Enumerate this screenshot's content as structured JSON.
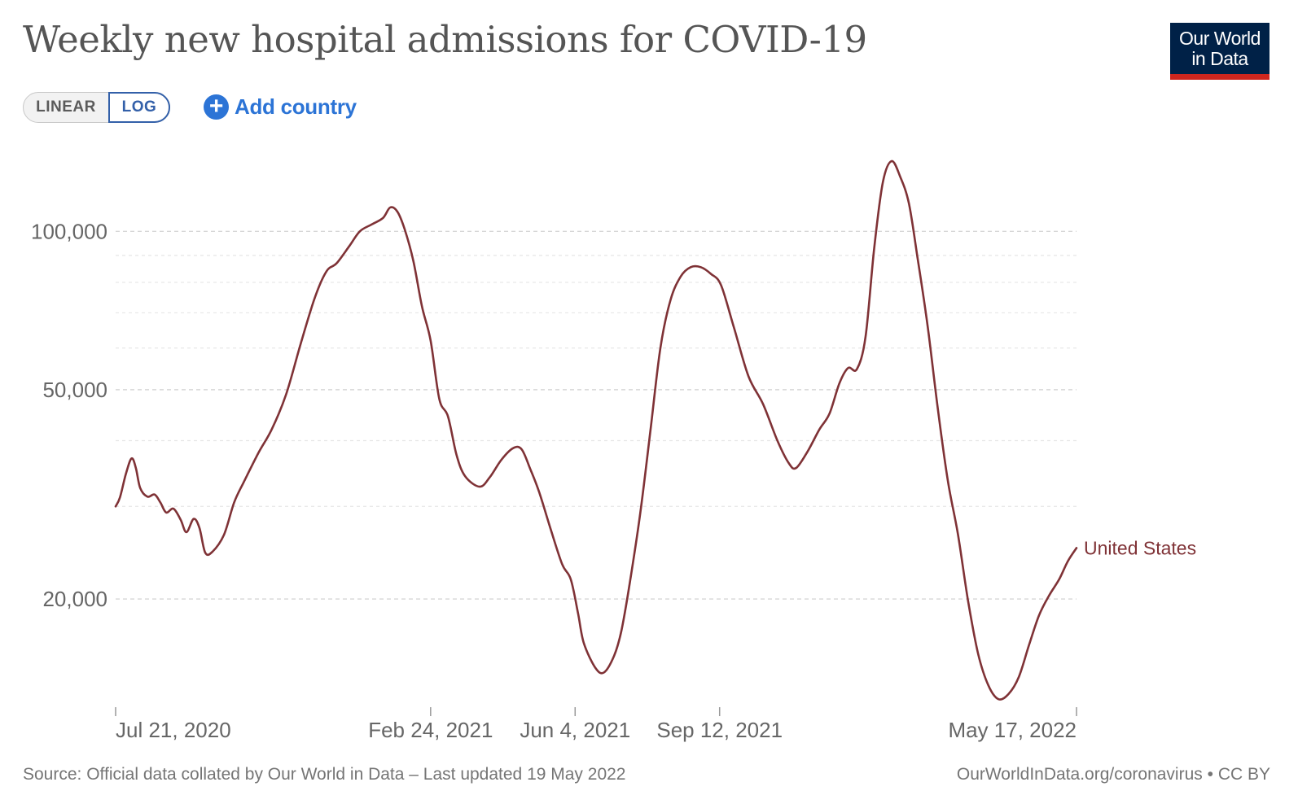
{
  "header": {
    "title": "Weekly new hospital admissions for COVID-19",
    "logo_line1": "Our World",
    "logo_line2": "in Data"
  },
  "controls": {
    "linear_label": "LINEAR",
    "log_label": "LOG",
    "selected_scale": "LOG",
    "add_country_label": "Add country",
    "add_country_icon": "plus-circle-icon"
  },
  "footer": {
    "source_text": "Source: Official data collated by Our World in Data – Last updated 19 May 2022",
    "site_link": "OurWorldInData.org/coronavirus",
    "separator": "•",
    "license": "CC BY"
  },
  "colors": {
    "series": "#7f3236",
    "accent": "#2c74d6",
    "logo_bg": "#002147",
    "logo_accent": "#ce261e"
  },
  "chart_data": {
    "type": "line",
    "title": "Weekly new hospital admissions for COVID-19",
    "y_scale": "log",
    "ylim": [
      12500,
      145000
    ],
    "y_ticks": [
      {
        "value": 20000,
        "label": "20,000"
      },
      {
        "value": 50000,
        "label": "50,000"
      },
      {
        "value": 100000,
        "label": "100,000"
      }
    ],
    "y_minor_gridlines": [
      30000,
      40000,
      60000,
      70000,
      80000,
      90000
    ],
    "x_ticks": [
      {
        "date": "2020-07-21",
        "label": "Jul 21, 2020"
      },
      {
        "date": "2021-02-24",
        "label": "Feb 24, 2021"
      },
      {
        "date": "2021-06-04",
        "label": "Jun 4, 2021"
      },
      {
        "date": "2021-09-12",
        "label": "Sep 12, 2021"
      },
      {
        "date": "2022-05-17",
        "label": "May 17, 2022"
      }
    ],
    "grid": "horizontal dashed",
    "legend": "line-end label",
    "series": [
      {
        "name": "United States",
        "points": [
          [
            "2020-07-21",
            30000
          ],
          [
            "2020-07-24",
            31200
          ],
          [
            "2020-07-28",
            34500
          ],
          [
            "2020-08-01",
            37000
          ],
          [
            "2020-08-04",
            35500
          ],
          [
            "2020-08-07",
            32500
          ],
          [
            "2020-08-12",
            31300
          ],
          [
            "2020-08-17",
            31600
          ],
          [
            "2020-08-21",
            30500
          ],
          [
            "2020-08-25",
            29200
          ],
          [
            "2020-08-30",
            29700
          ],
          [
            "2020-09-04",
            28300
          ],
          [
            "2020-09-08",
            26800
          ],
          [
            "2020-09-13",
            28400
          ],
          [
            "2020-09-17",
            27300
          ],
          [
            "2020-09-21",
            24500
          ],
          [
            "2020-09-26",
            24600
          ],
          [
            "2020-10-04",
            26500
          ],
          [
            "2020-10-11",
            30500
          ],
          [
            "2020-10-18",
            33500
          ],
          [
            "2020-10-28",
            38000
          ],
          [
            "2020-11-06",
            42000
          ],
          [
            "2020-11-16",
            49000
          ],
          [
            "2020-11-26",
            61000
          ],
          [
            "2020-12-06",
            75000
          ],
          [
            "2020-12-14",
            84000
          ],
          [
            "2020-12-21",
            87000
          ],
          [
            "2020-12-30",
            94000
          ],
          [
            "2021-01-06",
            100000
          ],
          [
            "2021-01-14",
            103000
          ],
          [
            "2021-01-22",
            106000
          ],
          [
            "2021-01-27",
            111000
          ],
          [
            "2021-02-01",
            109000
          ],
          [
            "2021-02-06",
            101000
          ],
          [
            "2021-02-12",
            88000
          ],
          [
            "2021-02-18",
            72000
          ],
          [
            "2021-02-24",
            62000
          ],
          [
            "2021-03-02",
            48000
          ],
          [
            "2021-03-08",
            44500
          ],
          [
            "2021-03-14",
            37500
          ],
          [
            "2021-03-20",
            34200
          ],
          [
            "2021-03-30",
            32700
          ],
          [
            "2021-04-06",
            34100
          ],
          [
            "2021-04-14",
            36800
          ],
          [
            "2021-04-22",
            38700
          ],
          [
            "2021-04-28",
            38500
          ],
          [
            "2021-05-04",
            35300
          ],
          [
            "2021-05-10",
            32000
          ],
          [
            "2021-05-18",
            27200
          ],
          [
            "2021-05-26",
            23300
          ],
          [
            "2021-06-01",
            21800
          ],
          [
            "2021-06-06",
            18800
          ],
          [
            "2021-06-10",
            16500
          ],
          [
            "2021-06-18",
            14800
          ],
          [
            "2021-06-24",
            14500
          ],
          [
            "2021-07-01",
            15600
          ],
          [
            "2021-07-06",
            17400
          ],
          [
            "2021-07-12",
            21600
          ],
          [
            "2021-07-19",
            29000
          ],
          [
            "2021-07-26",
            41500
          ],
          [
            "2021-08-02",
            60000
          ],
          [
            "2021-08-09",
            74000
          ],
          [
            "2021-08-16",
            82000
          ],
          [
            "2021-08-23",
            85500
          ],
          [
            "2021-08-30",
            85500
          ],
          [
            "2021-09-06",
            83000
          ],
          [
            "2021-09-13",
            79000
          ],
          [
            "2021-09-22",
            65500
          ],
          [
            "2021-10-02",
            53000
          ],
          [
            "2021-10-12",
            47000
          ],
          [
            "2021-10-22",
            40000
          ],
          [
            "2021-10-30",
            36200
          ],
          [
            "2021-11-04",
            35500
          ],
          [
            "2021-11-12",
            38200
          ],
          [
            "2021-11-20",
            42000
          ],
          [
            "2021-11-27",
            45000
          ],
          [
            "2021-12-04",
            51500
          ],
          [
            "2021-12-10",
            55000
          ],
          [
            "2021-12-16",
            54700
          ],
          [
            "2021-12-22",
            63000
          ],
          [
            "2021-12-28",
            93000
          ],
          [
            "2022-01-03",
            124000
          ],
          [
            "2022-01-09",
            136000
          ],
          [
            "2022-01-15",
            127000
          ],
          [
            "2022-01-21",
            113000
          ],
          [
            "2022-01-27",
            89000
          ],
          [
            "2022-02-03",
            66000
          ],
          [
            "2022-02-10",
            46000
          ],
          [
            "2022-02-17",
            33500
          ],
          [
            "2022-02-24",
            26500
          ],
          [
            "2022-03-03",
            19800
          ],
          [
            "2022-03-10",
            15700
          ],
          [
            "2022-03-17",
            13700
          ],
          [
            "2022-03-24",
            12900
          ],
          [
            "2022-03-31",
            13200
          ],
          [
            "2022-04-07",
            14200
          ],
          [
            "2022-04-14",
            16300
          ],
          [
            "2022-04-21",
            18600
          ],
          [
            "2022-04-28",
            20300
          ],
          [
            "2022-05-05",
            21800
          ],
          [
            "2022-05-11",
            23600
          ],
          [
            "2022-05-17",
            25000
          ]
        ]
      }
    ]
  }
}
